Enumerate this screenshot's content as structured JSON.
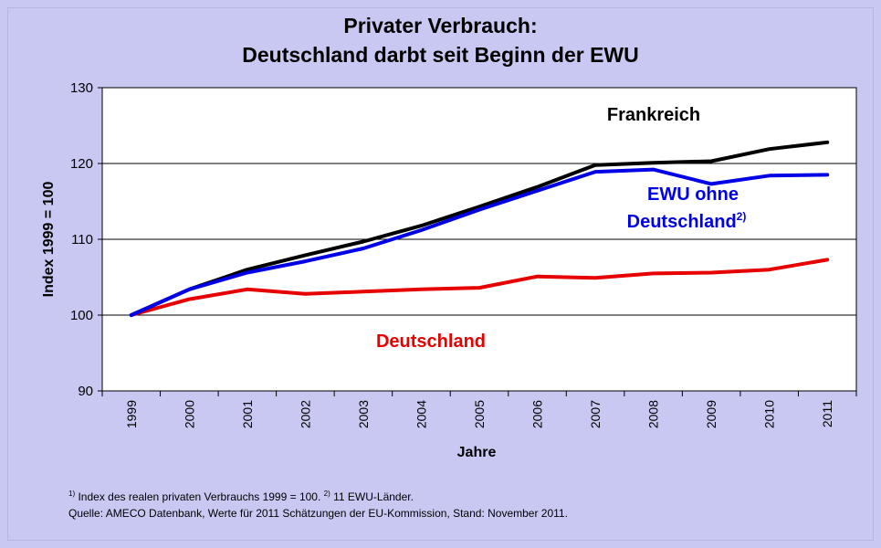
{
  "chart_data": {
    "type": "line",
    "title": "Privater Verbrauch:",
    "subtitle": "Deutschland darbt seit Beginn der EWU",
    "xlabel": "Jahre",
    "ylabel": "Index 1999 = 100",
    "ylim": [
      90,
      130
    ],
    "yticks": [
      "90",
      "100",
      "110",
      "120",
      "130"
    ],
    "grid": "horizontal",
    "categories": [
      "1999",
      "2000",
      "2001",
      "2002",
      "2003",
      "2004",
      "2005",
      "2006",
      "2007",
      "2008",
      "2009",
      "2010",
      "2011"
    ],
    "series": [
      {
        "name": "Frankreich",
        "color": "#000000",
        "values": [
          100,
          103.4,
          106.0,
          107.9,
          109.7,
          111.8,
          114.3,
          116.9,
          119.8,
          120.1,
          120.3,
          121.9,
          122.8
        ]
      },
      {
        "name": "EWU ohne Deutschland",
        "footnote_ref": "2)",
        "color": "#0000e6",
        "values": [
          100,
          103.4,
          105.6,
          107.1,
          108.8,
          111.2,
          113.9,
          116.4,
          118.9,
          119.2,
          117.3,
          118.4,
          118.5
        ]
      },
      {
        "name": "Deutschland",
        "color": "#e60000",
        "values": [
          100,
          102.1,
          103.4,
          102.8,
          103.1,
          103.4,
          103.6,
          105.1,
          104.9,
          105.5,
          105.6,
          106.0,
          107.3
        ]
      }
    ]
  },
  "footnotes": {
    "fn1_marker": "1)",
    "fn1_text": " Index des realen privaten Verbrauchs 1999 = 100. ",
    "fn2_marker": "2)",
    "fn2_text": " 11 EWU-Länder.",
    "source": "Quelle: AMECO Datenbank, Werte für 2011 Schätzungen der EU-Kommission, Stand: November 2011."
  },
  "colors": {
    "background": "#c8c8f2",
    "plot_area": "#ffffff"
  }
}
